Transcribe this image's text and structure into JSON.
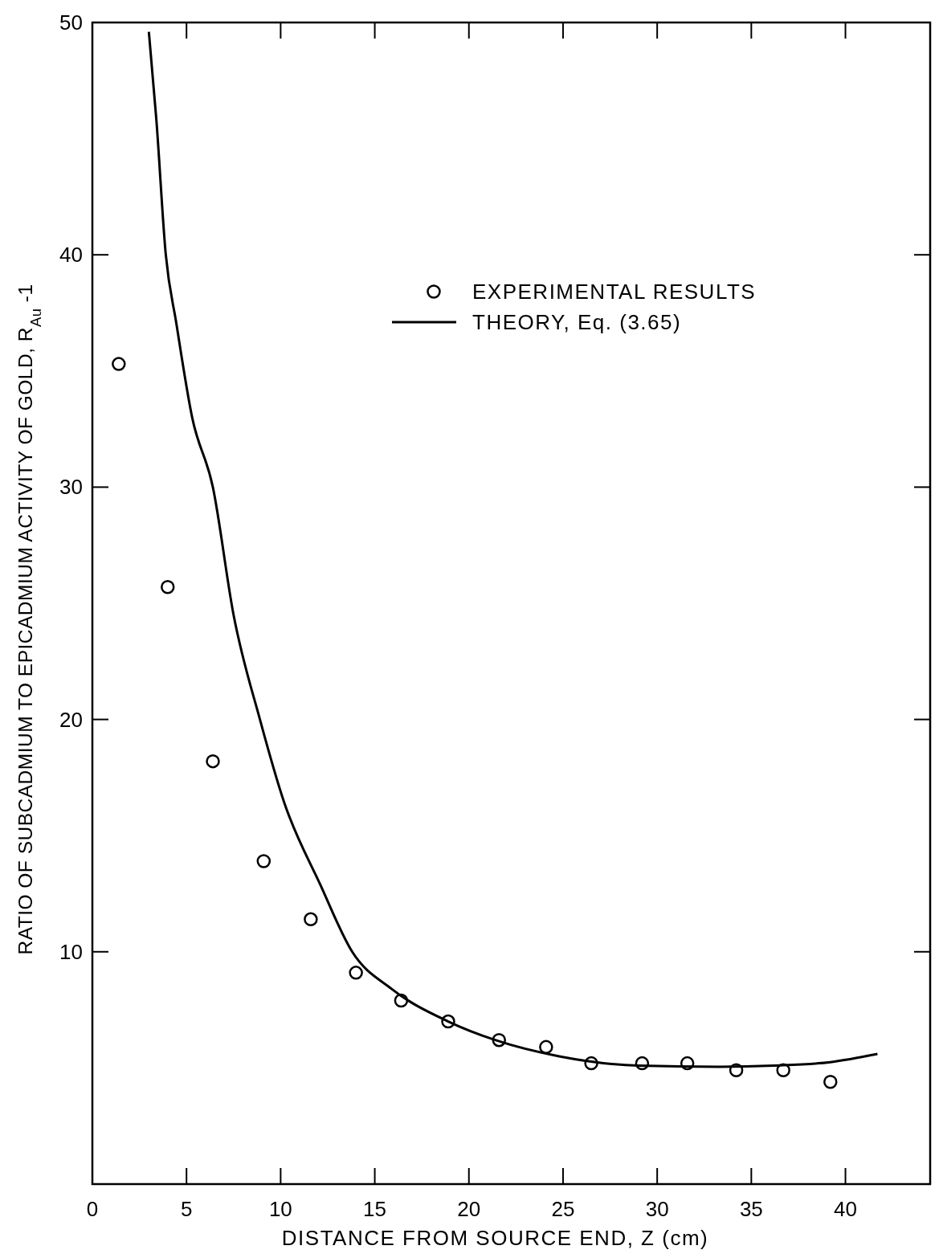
{
  "chart_data": {
    "type": "scatter",
    "xlabel": "DISTANCE FROM SOURCE END, Z (cm)",
    "ylabel": "RATIO OF SUBCADMIUM TO EPICADMIUM ACTIVITY OF GOLD, R$_{Au}$ -1",
    "xlim": [
      0,
      44.5
    ],
    "xticks": [
      0,
      5,
      10,
      15,
      20,
      25,
      30,
      35,
      40
    ],
    "ylim": [
      0,
      50
    ],
    "yticks": [
      10,
      20,
      30,
      40,
      50
    ],
    "grid": false,
    "legend": "top right",
    "series": [
      {
        "name": "EXPERIMENTAL RESULTS",
        "color": "#000000",
        "marker": "circle",
        "x": [
          1.4,
          4.0,
          6.4,
          9.1,
          11.6,
          14.0,
          16.4,
          18.9,
          21.6,
          24.1,
          26.5,
          29.2,
          31.6,
          34.2,
          36.7,
          39.2
        ],
        "values": [
          35.3,
          25.7,
          18.2,
          13.9,
          11.4,
          9.1,
          7.9,
          7.0,
          6.2,
          5.9,
          5.2,
          5.2,
          5.2,
          4.9,
          4.9,
          4.4
        ]
      },
      {
        "name": "THEORY, Eq. (3.65)",
        "type": "line",
        "color": "#000000",
        "line_style": "solid",
        "x": [
          3.0,
          3.4,
          3.9,
          4.45,
          5.3,
          6.4,
          7.5,
          8.9,
          10.2,
          12.1,
          13.8,
          15.9,
          18.9,
          21.4,
          24.8,
          29.0,
          33.3,
          36.2,
          39.2,
          41.7
        ],
        "values": [
          49.6,
          45.8,
          40.0,
          37.1,
          33.0,
          30.0,
          24.5,
          20.0,
          16.4,
          12.9,
          10.0,
          8.4,
          7.0,
          6.2,
          5.5,
          5.1,
          5.05,
          5.1,
          5.25,
          5.6
        ]
      }
    ]
  }
}
